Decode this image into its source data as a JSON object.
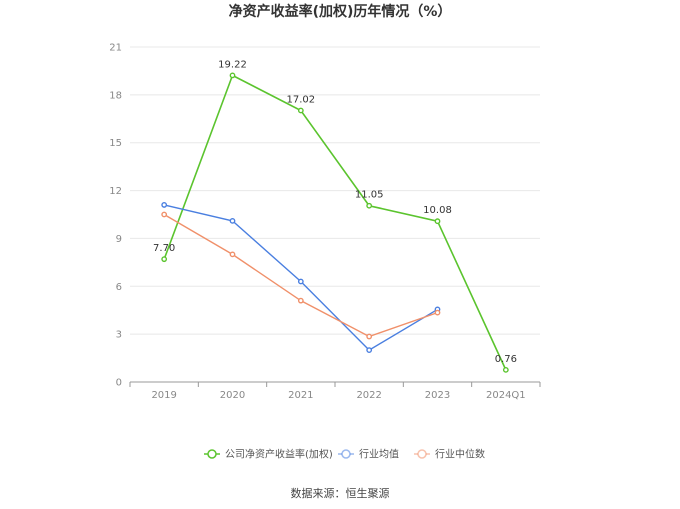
{
  "chart_data": {
    "type": "line",
    "title": "净资产收益率(加权)历年情况（%）",
    "categories": [
      "2019",
      "2020",
      "2021",
      "2022",
      "2023",
      "2024Q1"
    ],
    "ylim": [
      0,
      21
    ],
    "yticks": [
      0,
      3,
      6,
      9,
      12,
      15,
      18,
      21
    ],
    "grid": true,
    "legend_position": "bottom",
    "series": [
      {
        "name": "公司净资产收益率(加权)",
        "color": "#5bc42e",
        "values": [
          7.7,
          19.22,
          17.02,
          11.05,
          10.08,
          0.76
        ],
        "labels": [
          "7.70",
          "19.22",
          "17.02",
          "11.05",
          "10.08",
          "0.76"
        ]
      },
      {
        "name": "行业均值",
        "color": "#4a7fe0",
        "values": [
          11.1,
          10.1,
          6.3,
          2.0,
          4.55,
          null
        ]
      },
      {
        "name": "行业中位数",
        "color": "#f0906a",
        "values": [
          10.5,
          8.0,
          5.1,
          2.85,
          4.35,
          null
        ]
      }
    ]
  },
  "source_text": "数据来源：恒生聚源"
}
